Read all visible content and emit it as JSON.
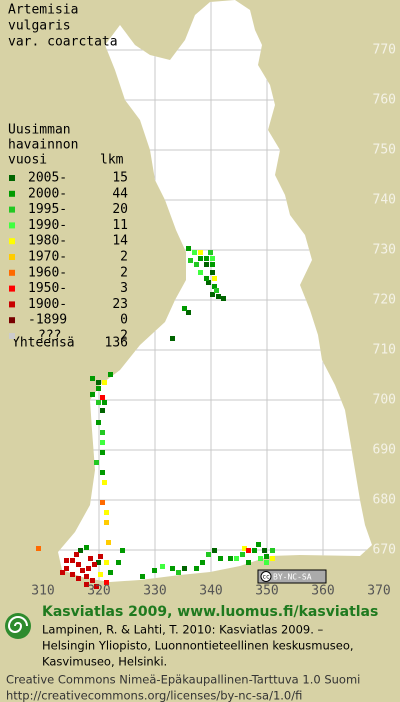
{
  "title": [
    "Artemisia",
    "vulgaris",
    "var. coarctata"
  ],
  "legend": {
    "header": [
      "Uusimman",
      "havainnon",
      "vuosi"
    ],
    "count_header": "lkm",
    "rows": [
      {
        "label": "2005-",
        "count": 15,
        "color": "#006400"
      },
      {
        "label": "2000-",
        "count": 44,
        "color": "#009a00"
      },
      {
        "label": "1995-",
        "count": 20,
        "color": "#22c822"
      },
      {
        "label": "1990-",
        "count": 11,
        "color": "#40ff40"
      },
      {
        "label": "1980-",
        "count": 14,
        "color": "#ffff00"
      },
      {
        "label": "1970-",
        "count": 2,
        "color": "#ffcc00"
      },
      {
        "label": "1960-",
        "count": 2,
        "color": "#ff6a00"
      },
      {
        "label": "1950-",
        "count": 3,
        "color": "#ff0000"
      },
      {
        "label": "1900-",
        "count": 23,
        "color": "#c80000"
      },
      {
        "label": "-1899",
        "count": 0,
        "color": "#780000"
      },
      {
        "label": "???",
        "count": 2,
        "color": "#cccccc"
      }
    ],
    "total": {
      "label": "Yhteensä",
      "count": 136
    }
  },
  "x_labels": [
    310,
    320,
    330,
    340,
    350,
    360,
    370
  ],
  "y_labels": [
    670,
    680,
    690,
    700,
    710,
    720,
    730,
    740,
    750,
    760,
    770
  ],
  "badge": {
    "icon": "cc",
    "text": "BY-NC-SA"
  },
  "brand": "Kasviatlas 2009, www.luomus.fi/kasviatlas",
  "citation": [
    "Lampinen, R. & Lahti, T. 2010: Kasviatlas 2009. –",
    "Helsingin Yliopisto, Luonnontieteellinen keskusmuseo,",
    "Kasvimuseo, Helsinki."
  ],
  "license": [
    "Creative Commons Nimeä-Epäkaupallinen-Tarttuva 1.0 Suomi",
    "http://creativecommons.org/licenses/by-nc-sa/1.0/fi"
  ]
}
